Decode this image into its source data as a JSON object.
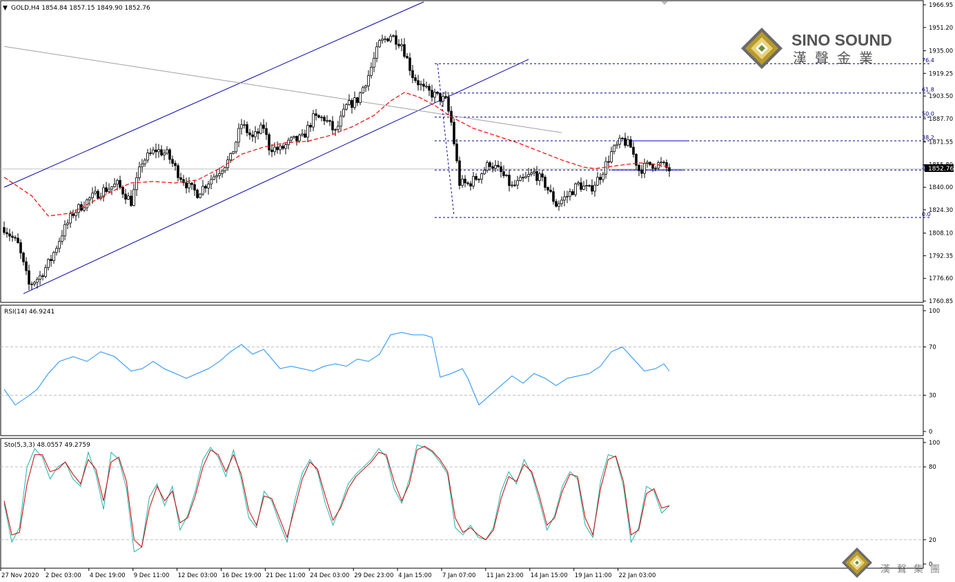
{
  "chart_data": [
    {
      "type": "candlestick",
      "panel": "price",
      "header": "GOLD,H4  1854.84 1857.15 1849.90 1852.76",
      "symbol": "GOLD,H4",
      "ohlc_header": {
        "open": 1854.84,
        "high": 1857.15,
        "low": 1849.9,
        "close": 1852.76
      },
      "current_price": "1852.76",
      "ylim": [
        1760.85,
        1966.95
      ],
      "ytick_labels": [
        "1966.95",
        "1951.20",
        "1935.00",
        "1919.25",
        "1903.50",
        "1887.70",
        "1871.55",
        "1855.80",
        "1840.00",
        "1824.30",
        "1808.10",
        "1792.35",
        "1776.60",
        "1760.85"
      ],
      "ytick_values": [
        1966.95,
        1951.2,
        1935.0,
        1919.25,
        1903.5,
        1887.7,
        1871.55,
        1855.8,
        1840.0,
        1824.3,
        1808.1,
        1792.35,
        1776.6,
        1760.85
      ],
      "x_tick_labels": [
        "27 Nov 2020",
        "2 Dec 03:00",
        "4 Dec 19:00",
        "9 Dec 11:00",
        "12 Dec 03:00",
        "16 Dec 19:00",
        "21 Dec 11:00",
        "24 Dec 03:00",
        "29 Dec 23:00",
        "4 Jan 15:00",
        "7 Jan 07:00",
        "11 Jan 23:00",
        "14 Jan 15:00",
        "19 Jan 11:00",
        "22 Jan 03:00"
      ],
      "close_path": [
        [
          0,
          1812
        ],
        [
          5,
          1800
        ],
        [
          9,
          1772
        ],
        [
          13,
          1778
        ],
        [
          17,
          1790
        ],
        [
          21,
          1808
        ],
        [
          25,
          1822
        ],
        [
          31,
          1832
        ],
        [
          36,
          1838
        ],
        [
          41,
          1842
        ],
        [
          46,
          1830
        ],
        [
          50,
          1858
        ],
        [
          55,
          1866
        ],
        [
          59,
          1863
        ],
        [
          63,
          1850
        ],
        [
          67,
          1840
        ],
        [
          70,
          1836
        ],
        [
          74,
          1844
        ],
        [
          78,
          1852
        ],
        [
          82,
          1860
        ],
        [
          86,
          1884
        ],
        [
          90,
          1874
        ],
        [
          94,
          1882
        ],
        [
          96,
          1868
        ],
        [
          100,
          1866
        ],
        [
          104,
          1872
        ],
        [
          108,
          1874
        ],
        [
          112,
          1888
        ],
        [
          116,
          1888
        ],
        [
          120,
          1878
        ],
        [
          124,
          1896
        ],
        [
          128,
          1901
        ],
        [
          132,
          1918
        ],
        [
          136,
          1940
        ],
        [
          140,
          1946
        ],
        [
          144,
          1940
        ],
        [
          148,
          1918
        ],
        [
          152,
          1908
        ],
        [
          156,
          1904
        ],
        [
          160,
          1900
        ],
        [
          162,
          1885
        ],
        [
          165,
          1843
        ],
        [
          168,
          1842
        ],
        [
          172,
          1848
        ],
        [
          176,
          1857
        ],
        [
          180,
          1850
        ],
        [
          184,
          1840
        ],
        [
          188,
          1845
        ],
        [
          192,
          1850
        ],
        [
          196,
          1842
        ],
        [
          200,
          1828
        ],
        [
          204,
          1834
        ],
        [
          208,
          1842
        ],
        [
          212,
          1838
        ],
        [
          216,
          1848
        ],
        [
          220,
          1864
        ],
        [
          224,
          1873
        ],
        [
          227,
          1868
        ],
        [
          230,
          1852
        ],
        [
          234,
          1856
        ],
        [
          238,
          1856
        ],
        [
          241,
          1852
        ]
      ],
      "ma": [
        [
          0,
          1847
        ],
        [
          10,
          1834
        ],
        [
          16,
          1820
        ],
        [
          24,
          1822
        ],
        [
          32,
          1830
        ],
        [
          40,
          1838
        ],
        [
          46,
          1843
        ],
        [
          54,
          1844
        ],
        [
          62,
          1843
        ],
        [
          70,
          1845
        ],
        [
          78,
          1853
        ],
        [
          86,
          1863
        ],
        [
          94,
          1868
        ],
        [
          102,
          1871
        ],
        [
          110,
          1872
        ],
        [
          118,
          1876
        ],
        [
          126,
          1882
        ],
        [
          134,
          1890
        ],
        [
          140,
          1900
        ],
        [
          145,
          1906
        ],
        [
          150,
          1903
        ],
        [
          156,
          1897
        ],
        [
          162,
          1889
        ],
        [
          170,
          1881
        ],
        [
          178,
          1876
        ],
        [
          186,
          1871
        ],
        [
          194,
          1865
        ],
        [
          202,
          1859
        ],
        [
          210,
          1854
        ],
        [
          214,
          1853
        ],
        [
          222,
          1855
        ],
        [
          230,
          1857
        ],
        [
          236,
          1856
        ],
        [
          241,
          1854
        ]
      ],
      "channel_upper": [
        [
          0,
          1840
        ],
        [
          152,
          1969
        ]
      ],
      "channel_lower": [
        [
          7,
          1766
        ],
        [
          190,
          1929
        ]
      ],
      "grey_trendline": [
        [
          0,
          1938
        ],
        [
          202,
          1878
        ]
      ],
      "fib_dashed_trend": [
        [
          157,
          1926
        ],
        [
          163,
          1820
        ]
      ],
      "fibonacci": {
        "x_start": 156,
        "x_end": 336,
        "levels": [
          {
            "label": "76.4",
            "value": 1926.0
          },
          {
            "label": "61.8",
            "value": 1905.6
          },
          {
            "label": "50.0",
            "value": 1888.8
          },
          {
            "label": "38.2",
            "value": 1872.3
          },
          {
            "label": "23.6",
            "value": 1852.0
          },
          {
            "label": "0.0",
            "value": 1819.0
          }
        ]
      },
      "hline_upper": {
        "value": 1872.3,
        "x_start": 226,
        "x_end": 248
      },
      "hline_lower": {
        "value": 1852.0,
        "x_start": 220,
        "x_end": 246
      },
      "colors": {
        "up": "#000000",
        "down": "#000000",
        "ma": "#ff0000",
        "channel": "#0000aa",
        "trend": "#a0a0a0",
        "fib": "#000080"
      }
    },
    {
      "type": "line",
      "panel": "rsi",
      "header": "RSI(14) 46.9241",
      "ylim": [
        0,
        100
      ],
      "ytick_labels": [
        "100",
        "70",
        "30",
        "0"
      ],
      "ytick_values": [
        100,
        70,
        30,
        0
      ],
      "levels": [
        70,
        30
      ],
      "color": "#1e90ff",
      "points": [
        [
          0,
          35
        ],
        [
          4,
          22
        ],
        [
          8,
          28
        ],
        [
          12,
          35
        ],
        [
          16,
          48
        ],
        [
          20,
          58
        ],
        [
          25,
          62
        ],
        [
          30,
          58
        ],
        [
          35,
          66
        ],
        [
          40,
          62
        ],
        [
          46,
          50
        ],
        [
          50,
          52
        ],
        [
          54,
          58
        ],
        [
          58,
          52
        ],
        [
          62,
          48
        ],
        [
          66,
          44
        ],
        [
          70,
          48
        ],
        [
          74,
          52
        ],
        [
          78,
          58
        ],
        [
          82,
          66
        ],
        [
          86,
          72
        ],
        [
          90,
          64
        ],
        [
          94,
          68
        ],
        [
          97,
          60
        ],
        [
          100,
          52
        ],
        [
          104,
          54
        ],
        [
          108,
          52
        ],
        [
          112,
          50
        ],
        [
          116,
          54
        ],
        [
          120,
          56
        ],
        [
          124,
          54
        ],
        [
          128,
          60
        ],
        [
          132,
          58
        ],
        [
          136,
          64
        ],
        [
          140,
          80
        ],
        [
          144,
          82
        ],
        [
          148,
          80
        ],
        [
          152,
          80
        ],
        [
          155,
          78
        ],
        [
          158,
          45
        ],
        [
          162,
          48
        ],
        [
          166,
          52
        ],
        [
          168,
          44
        ],
        [
          172,
          22
        ],
        [
          176,
          30
        ],
        [
          180,
          38
        ],
        [
          184,
          46
        ],
        [
          188,
          40
        ],
        [
          192,
          48
        ],
        [
          196,
          44
        ],
        [
          200,
          38
        ],
        [
          204,
          44
        ],
        [
          208,
          46
        ],
        [
          212,
          48
        ],
        [
          216,
          54
        ],
        [
          220,
          66
        ],
        [
          224,
          70
        ],
        [
          228,
          60
        ],
        [
          232,
          50
        ],
        [
          236,
          52
        ],
        [
          239,
          56
        ],
        [
          241,
          50
        ]
      ]
    },
    {
      "type": "line",
      "panel": "stochastic",
      "header": "Sto(5,3,3) 48.0557 49.2759",
      "ylim": [
        0,
        100
      ],
      "ytick_labels": [
        "100",
        "80",
        "20",
        "0"
      ],
      "ytick_values": [
        100,
        80,
        20,
        0
      ],
      "levels": [
        80,
        20
      ],
      "series": [
        {
          "color": "#20b2aa",
          "values": [
            50,
            18,
            30,
            80,
            95,
            88,
            70,
            80,
            84,
            70,
            64,
            92,
            74,
            45,
            92,
            86,
            62,
            10,
            14,
            55,
            66,
            48,
            64,
            28,
            40,
            60,
            86,
            96,
            88,
            72,
            94,
            70,
            38,
            30,
            60,
            52,
            34,
            18,
            52,
            75,
            86,
            76,
            50,
            32,
            48,
            66,
            74,
            80,
            86,
            95,
            88,
            62,
            50,
            70,
            98,
            96,
            92,
            84,
            74,
            30,
            24,
            32,
            22,
            20,
            30,
            60,
            76,
            66,
            86,
            74,
            52,
            28,
            40,
            64,
            76,
            70,
            32,
            22,
            68,
            90,
            88,
            64,
            18,
            30,
            64,
            60,
            42,
            48
          ]
        },
        {
          "color": "#cc0000",
          "values": [
            52,
            24,
            26,
            66,
            90,
            90,
            76,
            78,
            84,
            74,
            66,
            86,
            78,
            52,
            84,
            88,
            68,
            20,
            14,
            46,
            64,
            52,
            60,
            34,
            38,
            56,
            80,
            94,
            90,
            76,
            90,
            74,
            44,
            32,
            56,
            54,
            38,
            22,
            46,
            70,
            84,
            78,
            56,
            36,
            46,
            62,
            72,
            78,
            84,
            92,
            90,
            68,
            52,
            66,
            94,
            97,
            93,
            86,
            76,
            38,
            26,
            30,
            24,
            20,
            28,
            54,
            72,
            68,
            82,
            76,
            56,
            32,
            38,
            60,
            74,
            72,
            38,
            24,
            62,
            86,
            89,
            68,
            24,
            28,
            58,
            62,
            46,
            48
          ]
        }
      ]
    }
  ],
  "watermark_top": {
    "brand": "SINO SOUND",
    "sub": "漢聲金業",
    "logo": "diamond-logo"
  },
  "watermark_bottom": {
    "sub": "漢聲集團",
    "logo": "diamond-logo"
  }
}
